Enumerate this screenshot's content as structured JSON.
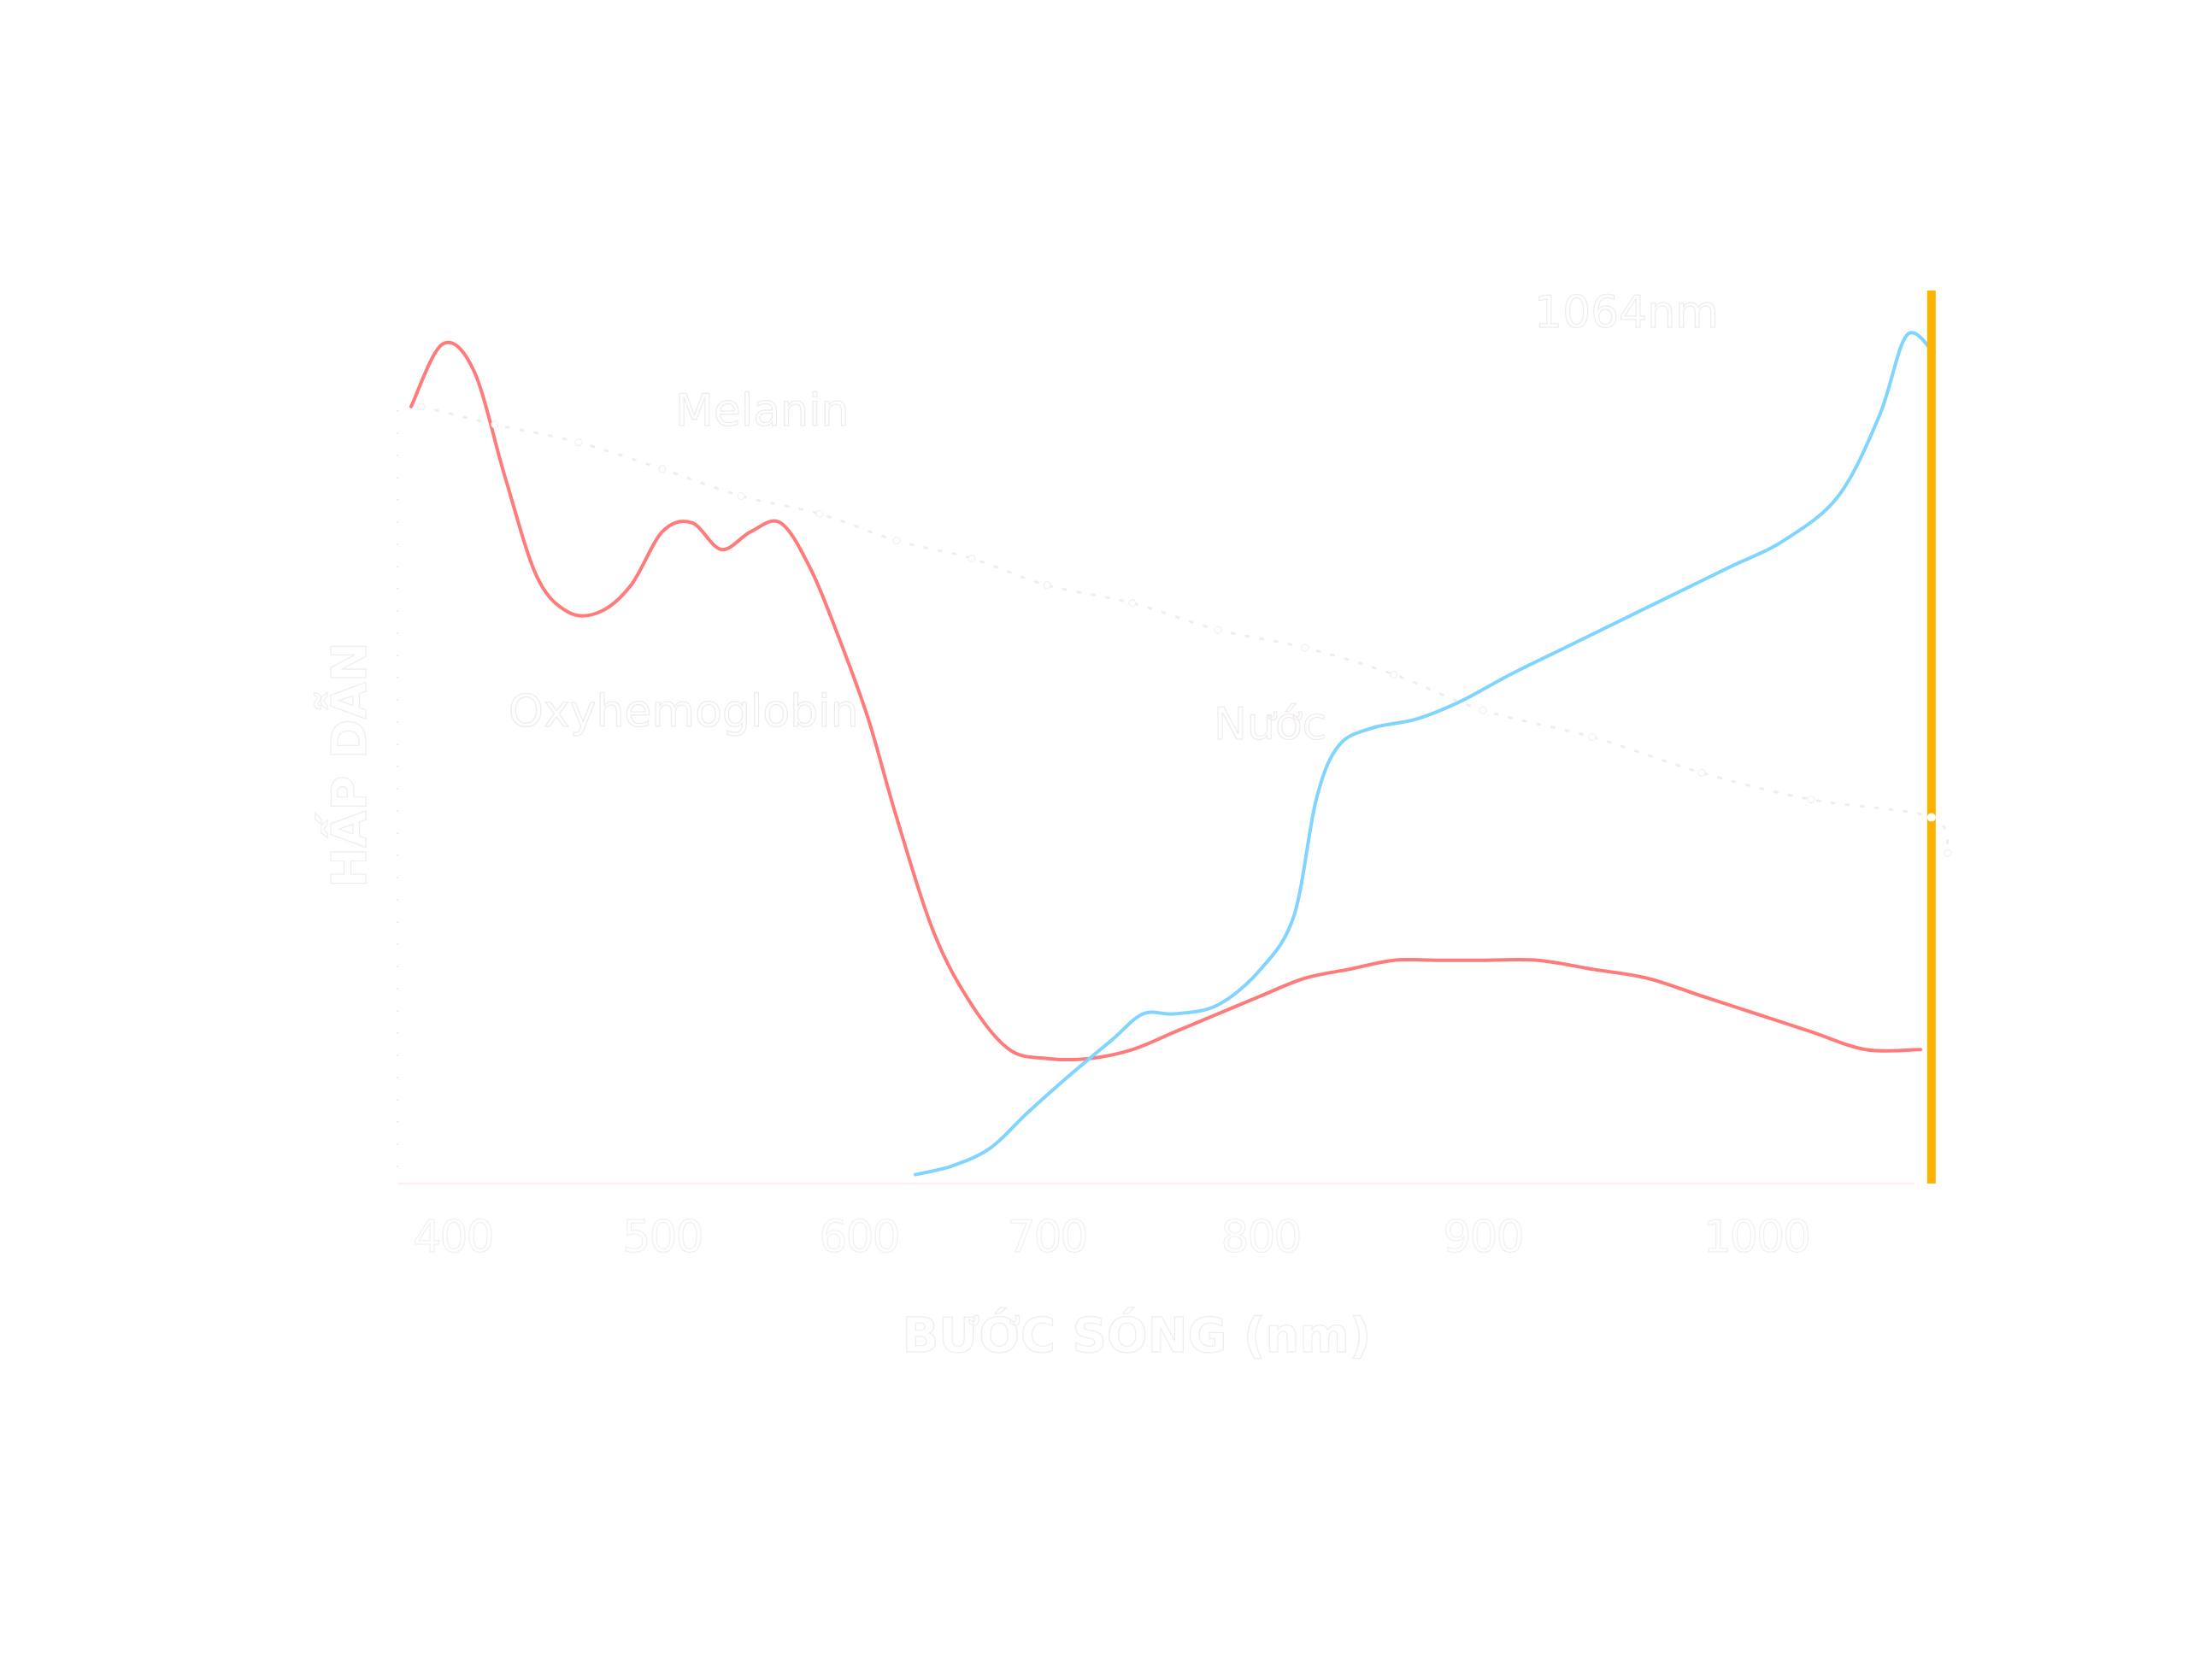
{
  "chart_data": {
    "type": "line",
    "title": "",
    "xlabel": "BƯỚC SÓNG (nm)",
    "ylabel": "HẤP DẪN",
    "x_ticks": [
      400,
      500,
      600,
      700,
      800,
      900,
      1000
    ],
    "xlim": [
      375,
      1070
    ],
    "ylim": [
      0,
      1
    ],
    "grid": false,
    "legend": "none",
    "annotations": [
      {
        "text": "Oxyhemoglobin",
        "series": "Oxyhemoglobin"
      },
      {
        "text": "Nước",
        "series": "Nước"
      },
      {
        "text": "Melanin",
        "series": "Melanin"
      },
      {
        "text": "1064nm",
        "marker_x": 1064
      }
    ],
    "series": [
      {
        "name": "Oxyhemoglobin",
        "color": "#ff7a7a",
        "style": "solid",
        "x": [
          380,
          395,
          410,
          425,
          440,
          455,
          470,
          485,
          500,
          515,
          530,
          545,
          560,
          575,
          590,
          605,
          620,
          640,
          660,
          680,
          700,
          720,
          740,
          760,
          780,
          800,
          820,
          840,
          860,
          880,
          900,
          920,
          940,
          960,
          980,
          1000,
          1020,
          1040,
          1060
        ],
        "y": [
          0.87,
          0.94,
          0.91,
          0.79,
          0.68,
          0.64,
          0.64,
          0.67,
          0.73,
          0.74,
          0.71,
          0.73,
          0.74,
          0.69,
          0.61,
          0.52,
          0.41,
          0.28,
          0.2,
          0.15,
          0.14,
          0.14,
          0.15,
          0.17,
          0.19,
          0.21,
          0.23,
          0.24,
          0.25,
          0.25,
          0.25,
          0.25,
          0.24,
          0.23,
          0.21,
          0.19,
          0.17,
          0.15,
          0.15
        ]
      },
      {
        "name": "Nước",
        "color": "#80d4ff",
        "style": "solid",
        "x": [
          630,
          650,
          670,
          690,
          710,
          730,
          745,
          760,
          780,
          800,
          815,
          825,
          835,
          850,
          870,
          890,
          910,
          930,
          950,
          970,
          990,
          1010,
          1030,
          1045,
          1055,
          1065
        ],
        "y": [
          0.01,
          0.02,
          0.04,
          0.08,
          0.12,
          0.16,
          0.19,
          0.19,
          0.2,
          0.24,
          0.3,
          0.43,
          0.49,
          0.51,
          0.52,
          0.54,
          0.57,
          0.6,
          0.63,
          0.66,
          0.69,
          0.72,
          0.77,
          0.86,
          0.95,
          0.93
        ]
      },
      {
        "name": "Melanin",
        "color": "#ffffff",
        "style": "dotted",
        "x": [
          385,
          420,
          460,
          500,
          540,
          580,
          620,
          660,
          700,
          740,
          780,
          820,
          860,
          900,
          940,
          980,
          1020,
          1064,
          1070
        ],
        "y": [
          0.87,
          0.85,
          0.83,
          0.8,
          0.77,
          0.75,
          0.72,
          0.7,
          0.67,
          0.65,
          0.62,
          0.6,
          0.57,
          0.53,
          0.5,
          0.46,
          0.43,
          0.41,
          0.37
        ]
      }
    ],
    "marker_line": {
      "x": 1064,
      "label": "1064nm",
      "color": "#ffb300"
    }
  }
}
